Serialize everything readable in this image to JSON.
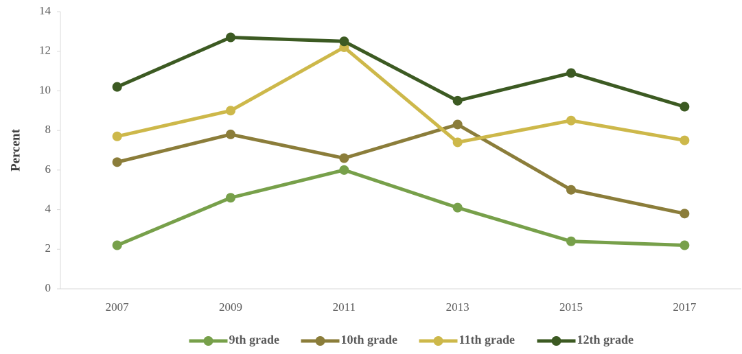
{
  "chart_data": {
    "type": "line",
    "y_label": "Percent",
    "categories": [
      "2007",
      "2009",
      "2011",
      "2013",
      "2015",
      "2017"
    ],
    "series": [
      {
        "name": "9th grade",
        "color": "#77a04a",
        "values": [
          2.2,
          4.6,
          6.0,
          4.1,
          2.4,
          2.2
        ]
      },
      {
        "name": "10th grade",
        "color": "#8b7d3a",
        "values": [
          6.4,
          7.8,
          6.6,
          8.3,
          5.0,
          3.8
        ]
      },
      {
        "name": "11th grade",
        "color": "#cdb84a",
        "values": [
          7.7,
          9.0,
          12.2,
          7.4,
          8.5,
          7.5
        ]
      },
      {
        "name": "12th grade",
        "color": "#3c5a22",
        "values": [
          10.2,
          12.7,
          12.5,
          9.5,
          10.9,
          9.2
        ]
      }
    ],
    "ylim": [
      0,
      14
    ],
    "yticks": [
      0,
      2,
      4,
      6,
      8,
      10,
      12,
      14
    ],
    "grid": false,
    "legend": "bottom"
  }
}
